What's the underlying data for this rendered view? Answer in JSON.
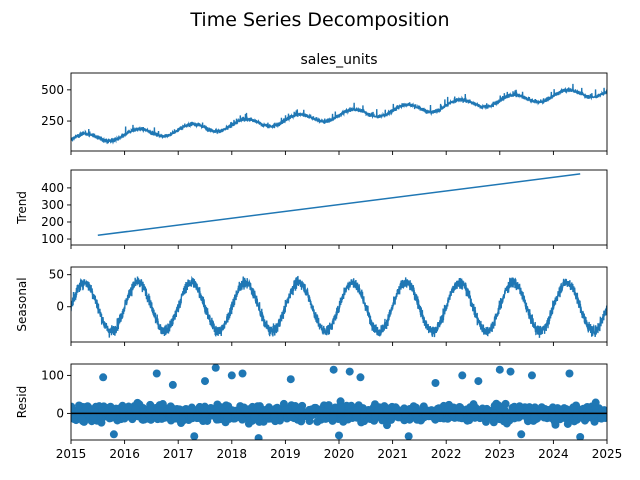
{
  "figure_title": "Time Series Decomposition",
  "colors": {
    "series": "#1f77b4",
    "axes": "#000000",
    "background": "#ffffff"
  },
  "chart_data": [
    {
      "type": "line",
      "title": "sales_units",
      "ylabel": "",
      "xlim": [
        2015,
        2025
      ],
      "ylim": [
        10,
        635
      ],
      "y_ticks": [
        250,
        500
      ],
      "x_tick_labels_shown": false,
      "grid": false,
      "series": [
        {
          "description_note_removed": true,
          "x": [
            2015.0,
            2015.5,
            2016.0,
            2016.5,
            2017.0,
            2017.5,
            2018.0,
            2018.5,
            2019.0,
            2019.5,
            2020.0,
            2020.5,
            2021.0,
            2021.5,
            2022.0,
            2022.5,
            2023.0,
            2023.5,
            2024.0,
            2024.5,
            2025.0
          ],
          "values": [
            100,
            150,
            120,
            200,
            160,
            240,
            200,
            280,
            230,
            300,
            270,
            340,
            310,
            380,
            340,
            420,
            380,
            460,
            420,
            500,
            480
          ]
        }
      ]
    },
    {
      "type": "line",
      "title": "",
      "ylabel": "Trend",
      "xlim": [
        2015,
        2025
      ],
      "ylim": [
        65,
        505
      ],
      "y_ticks": [
        100,
        200,
        300,
        400
      ],
      "x_tick_labels_shown": false,
      "grid": false,
      "series": [
        {
          "x": [
            2015.5,
            2024.5
          ],
          "values": [
            122,
            482
          ]
        }
      ]
    },
    {
      "type": "line",
      "title": "",
      "ylabel": "Seasonal",
      "xlim": [
        2015,
        2025
      ],
      "ylim": [
        -55,
        62
      ],
      "y_ticks": [
        0,
        50
      ],
      "x_tick_labels_shown": false,
      "grid": false,
      "series": [
        {
          "amplitude": 38,
          "cycles_per_year": 1,
          "peak_year_fraction": 0.2
        }
      ]
    },
    {
      "type": "scatter",
      "title": "",
      "ylabel": "Resid",
      "xlim": [
        2015,
        2025
      ],
      "ylim": [
        -70,
        130
      ],
      "y_ticks": [
        0,
        100
      ],
      "zero_line": true,
      "x_tick_labels": [
        "2015",
        "2016",
        "2017",
        "2018",
        "2019",
        "2020",
        "2021",
        "2022",
        "2023",
        "2024",
        "2025"
      ],
      "x_tick_values": [
        2015,
        2016,
        2017,
        2018,
        2019,
        2020,
        2021,
        2022,
        2023,
        2024,
        2025
      ],
      "grid": false,
      "series": [
        {
          "typical_spread": [
            -40,
            40
          ],
          "outliers": [
            [
              2015.6,
              95
            ],
            [
              2016.6,
              105
            ],
            [
              2016.9,
              75
            ],
            [
              2017.5,
              85
            ],
            [
              2017.7,
              120
            ],
            [
              2018.0,
              100
            ],
            [
              2018.2,
              105
            ],
            [
              2019.1,
              90
            ],
            [
              2019.9,
              115
            ],
            [
              2020.2,
              110
            ],
            [
              2020.4,
              95
            ],
            [
              2021.8,
              80
            ],
            [
              2022.3,
              100
            ],
            [
              2022.6,
              85
            ],
            [
              2023.0,
              115
            ],
            [
              2023.2,
              110
            ],
            [
              2023.6,
              100
            ],
            [
              2024.3,
              105
            ],
            [
              2015.8,
              -55
            ],
            [
              2017.3,
              -60
            ],
            [
              2018.5,
              -65
            ],
            [
              2020.0,
              -58
            ],
            [
              2021.3,
              -60
            ],
            [
              2023.4,
              -55
            ],
            [
              2024.5,
              -62
            ]
          ]
        }
      ]
    }
  ]
}
